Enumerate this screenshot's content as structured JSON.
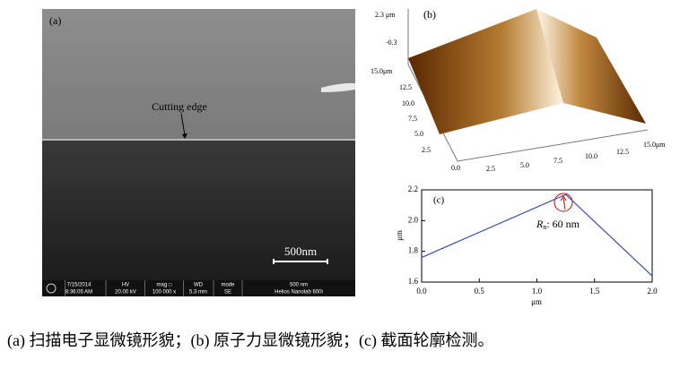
{
  "panel_a": {
    "label": "(a)",
    "annotation": "Cutting edge",
    "scale_bar": "500nm",
    "info_bar": [
      [
        "7/15/2014",
        "8:36:05 AM"
      ],
      [
        "HV",
        "20.00 kV"
      ],
      [
        "mag □",
        "100 000 x"
      ],
      [
        "WD",
        "5.3 mm"
      ],
      [
        "mode",
        "SE"
      ],
      [
        "500 nm",
        "Helios Nanolab 600i"
      ]
    ]
  },
  "panel_b": {
    "label": "(b)",
    "z_ticks": [
      "2.3 μm",
      "-0.3"
    ],
    "y_ticks": [
      "15.0μm",
      "12.5",
      "10.0",
      "7.5",
      "5.0",
      "2.5",
      "0.0"
    ],
    "x_ticks": [
      "2.5",
      "5.0",
      "7.5",
      "10.0",
      "12.5",
      "15.0μm"
    ]
  },
  "chart_data": {
    "type": "line",
    "label": "(c)",
    "annotation": {
      "symbol": "R",
      "subscript": "n",
      "text": ": 60 nm"
    },
    "x_label": "μm",
    "y_label": "μm",
    "x": [
      0,
      1.25,
      2.0
    ],
    "series": [
      {
        "color": "#3a4fb0",
        "values": [
          1.76,
          2.17,
          1.64
        ]
      }
    ],
    "xlim": [
      0,
      2
    ],
    "ylim": [
      1.6,
      2.2
    ],
    "xticks": [
      {
        "value": 0,
        "label": "0.0"
      },
      {
        "value": 0.5,
        "label": "0.5"
      },
      {
        "value": 1,
        "label": "1.0"
      },
      {
        "value": 1.5,
        "label": "1.5"
      },
      {
        "value": 2,
        "label": "2.0"
      }
    ],
    "yticks": [
      {
        "value": 1.6,
        "label": "1.6"
      },
      {
        "value": 1.8,
        "label": "1.8"
      },
      {
        "value": 2.0,
        "label": "2.0"
      },
      {
        "value": 2.2,
        "label": "2.2"
      }
    ]
  },
  "caption": "(a) 扫描电子显微镜形貌；(b) 原子力显微镜形貌；(c) 截面轮廓检测。"
}
